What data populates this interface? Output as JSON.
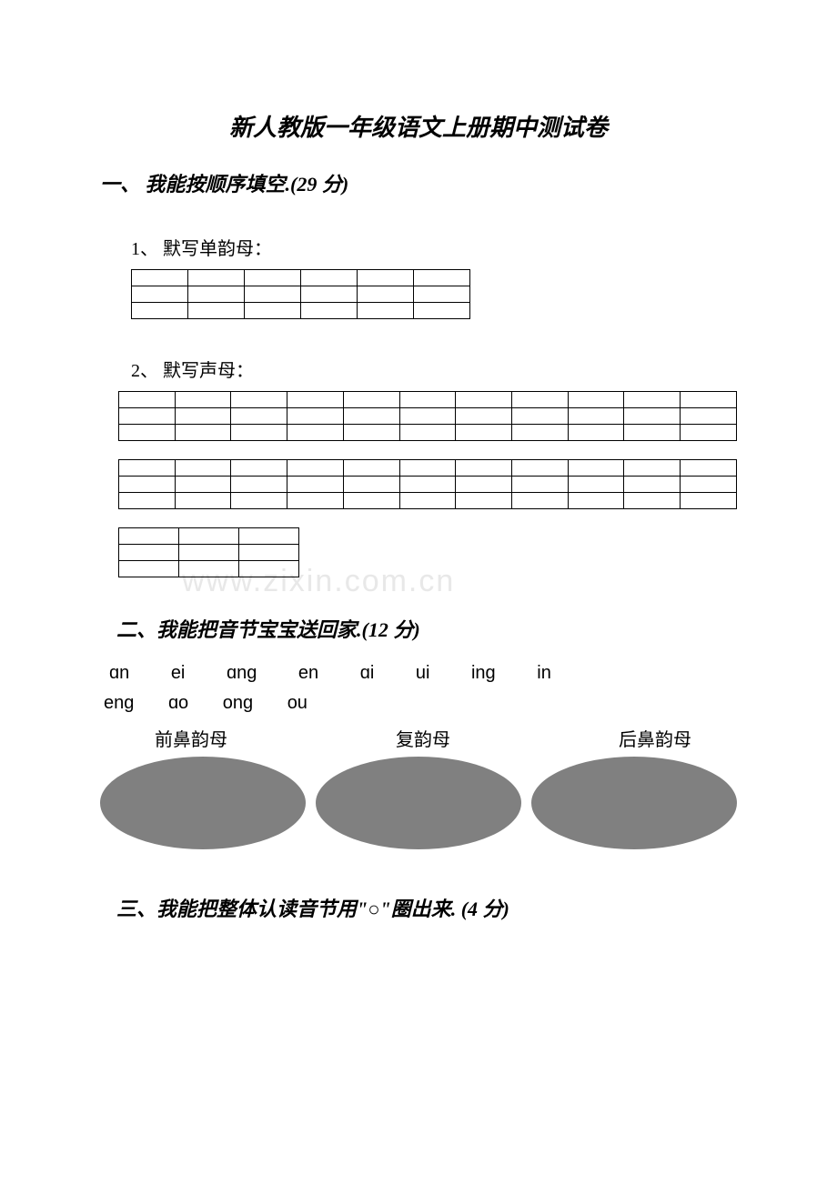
{
  "title": "新人教版一年级语文上册期中测试卷",
  "section1": {
    "heading": "一、 我能按顺序填空.(29 分)",
    "item1": "1、 默写单韵母：",
    "item2": "2、 默写声母：",
    "table1": {
      "rows": 3,
      "cols": 6
    },
    "table2a": {
      "rows": 3,
      "cols": 11
    },
    "table2b": {
      "rows": 3,
      "cols": 11
    },
    "table2c": {
      "rows": 3,
      "cols": 3
    }
  },
  "section2": {
    "heading": "二、我能把音节宝宝送回家.(12 分)",
    "syllables_row1": [
      "ɑn",
      "ei",
      "ɑnɡ",
      "en",
      "ɑi",
      "ui",
      "inɡ",
      "in"
    ],
    "syllables_row2": [
      "enɡ",
      "ɑo",
      "onɡ",
      "ou"
    ],
    "labels": [
      "前鼻韵母",
      "复韵母",
      "后鼻韵母"
    ],
    "ellipse_color": "#808080",
    "ellipse_count": 3
  },
  "section3": {
    "heading": "三、我能把整体认读音节用\"○\"圈出来.  (4 分)"
  },
  "watermark": "www.zixin.com.cn",
  "colors": {
    "background": "#ffffff",
    "text": "#000000",
    "border": "#000000",
    "ellipse": "#808080",
    "watermark": "#e8e8e8"
  }
}
